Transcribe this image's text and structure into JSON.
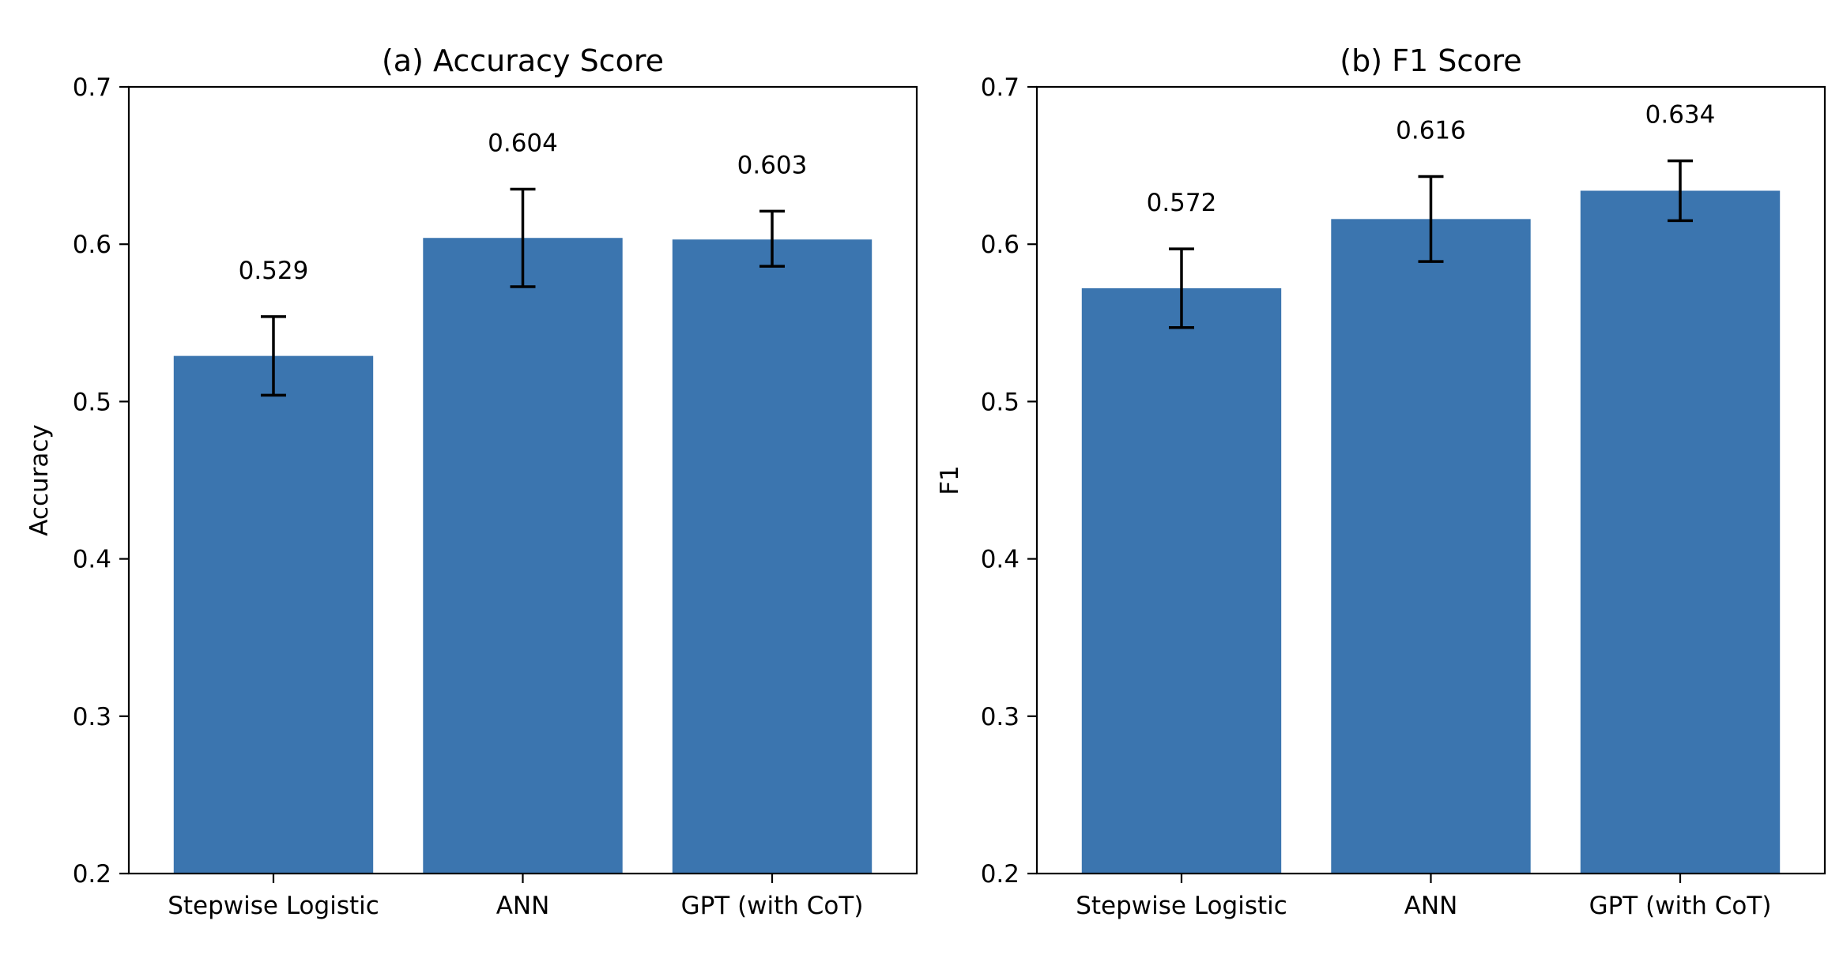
{
  "chart_data": [
    {
      "type": "bar",
      "title": "(a) Accuracy Score",
      "xlabel": "",
      "ylabel": "Accuracy",
      "ylim": [
        0.2,
        0.7
      ],
      "yticks": [
        "0.2",
        "0.3",
        "0.4",
        "0.5",
        "0.6",
        "0.7"
      ],
      "categories": [
        "Stepwise Logistic",
        "ANN",
        "GPT (with CoT)"
      ],
      "values": [
        0.529,
        0.604,
        0.603
      ],
      "error_low": [
        0.504,
        0.573,
        0.586
      ],
      "error_high": [
        0.554,
        0.635,
        0.621
      ],
      "value_labels": [
        "0.529",
        "0.604",
        "0.603"
      ],
      "bar_color": "#3b75af",
      "grid": false
    },
    {
      "type": "bar",
      "title": "(b) F1 Score",
      "xlabel": "",
      "ylabel": "F1",
      "ylim": [
        0.2,
        0.7
      ],
      "yticks": [
        "0.2",
        "0.3",
        "0.4",
        "0.5",
        "0.6",
        "0.7"
      ],
      "categories": [
        "Stepwise Logistic",
        "ANN",
        "GPT (with CoT)"
      ],
      "values": [
        0.572,
        0.616,
        0.634
      ],
      "error_low": [
        0.547,
        0.589,
        0.615
      ],
      "error_high": [
        0.597,
        0.643,
        0.653
      ],
      "value_labels": [
        "0.572",
        "0.616",
        "0.634"
      ],
      "bar_color": "#3b75af",
      "grid": false
    }
  ]
}
